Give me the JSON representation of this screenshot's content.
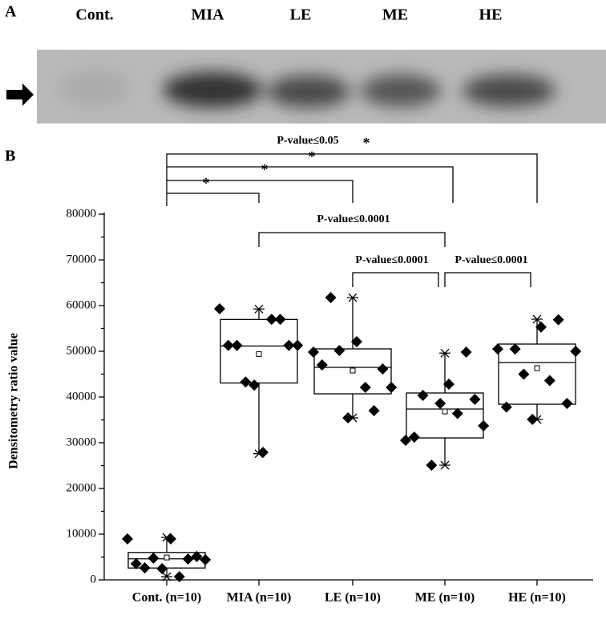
{
  "panel_a": {
    "label": "A",
    "lanes": [
      "Cont.",
      "MIA",
      "LE",
      "ME",
      "HE"
    ]
  },
  "chart_data": {
    "type": "box",
    "panel_label": "B",
    "y_label": "Densitometry ratio value",
    "categories": [
      "Cont. (n=10)",
      "MIA (n=10)",
      "LE (n=10)",
      "ME (n=10)",
      "HE (n=10)"
    ],
    "groups": [
      {
        "min": 700,
        "q1": 2600,
        "median": 4600,
        "q3": 6000,
        "max": 9300,
        "mean": 4900,
        "points": [
          8970,
          3520,
          2640,
          4750,
          2460,
          8970,
          700,
          4570,
          5100,
          4400
        ]
      },
      {
        "min": 27600,
        "q1": 43070,
        "median": 51160,
        "q3": 56960,
        "max": 59250,
        "mean": 49400,
        "points": [
          59300,
          51300,
          51300,
          43300,
          42600,
          27900,
          57000,
          57000,
          51300,
          51300
        ]
      },
      {
        "min": 35440,
        "q1": 40700,
        "median": 46490,
        "q3": 50530,
        "max": 61750,
        "mean": 45790,
        "points": [
          49820,
          47020,
          61750,
          50180,
          35440,
          52110,
          42110,
          37020,
          46140,
          42110
        ]
      },
      {
        "min": 25090,
        "q1": 31050,
        "median": 37370,
        "q3": 40880,
        "max": 49600,
        "mean": 36840,
        "points": [
          30530,
          31230,
          40350,
          25090,
          38600,
          42800,
          36400,
          49820,
          39500,
          33700
        ]
      },
      {
        "min": 35090,
        "q1": 38420,
        "median": 47540,
        "q3": 51580,
        "max": 57020,
        "mean": 46320,
        "points": [
          50500,
          37800,
          50500,
          45000,
          35100,
          55300,
          43600,
          56900,
          38600,
          50000
        ]
      }
    ],
    "ylim": [
      0,
      80000
    ],
    "yticks": [
      0,
      10000,
      20000,
      30000,
      40000,
      50000,
      60000,
      70000,
      80000
    ],
    "annotations": [
      "P-value≤0.05",
      "*",
      "*",
      "*",
      "*",
      "P-value≤0.0001",
      "P-value≤0.0001",
      "P-value≤0.0001"
    ]
  }
}
